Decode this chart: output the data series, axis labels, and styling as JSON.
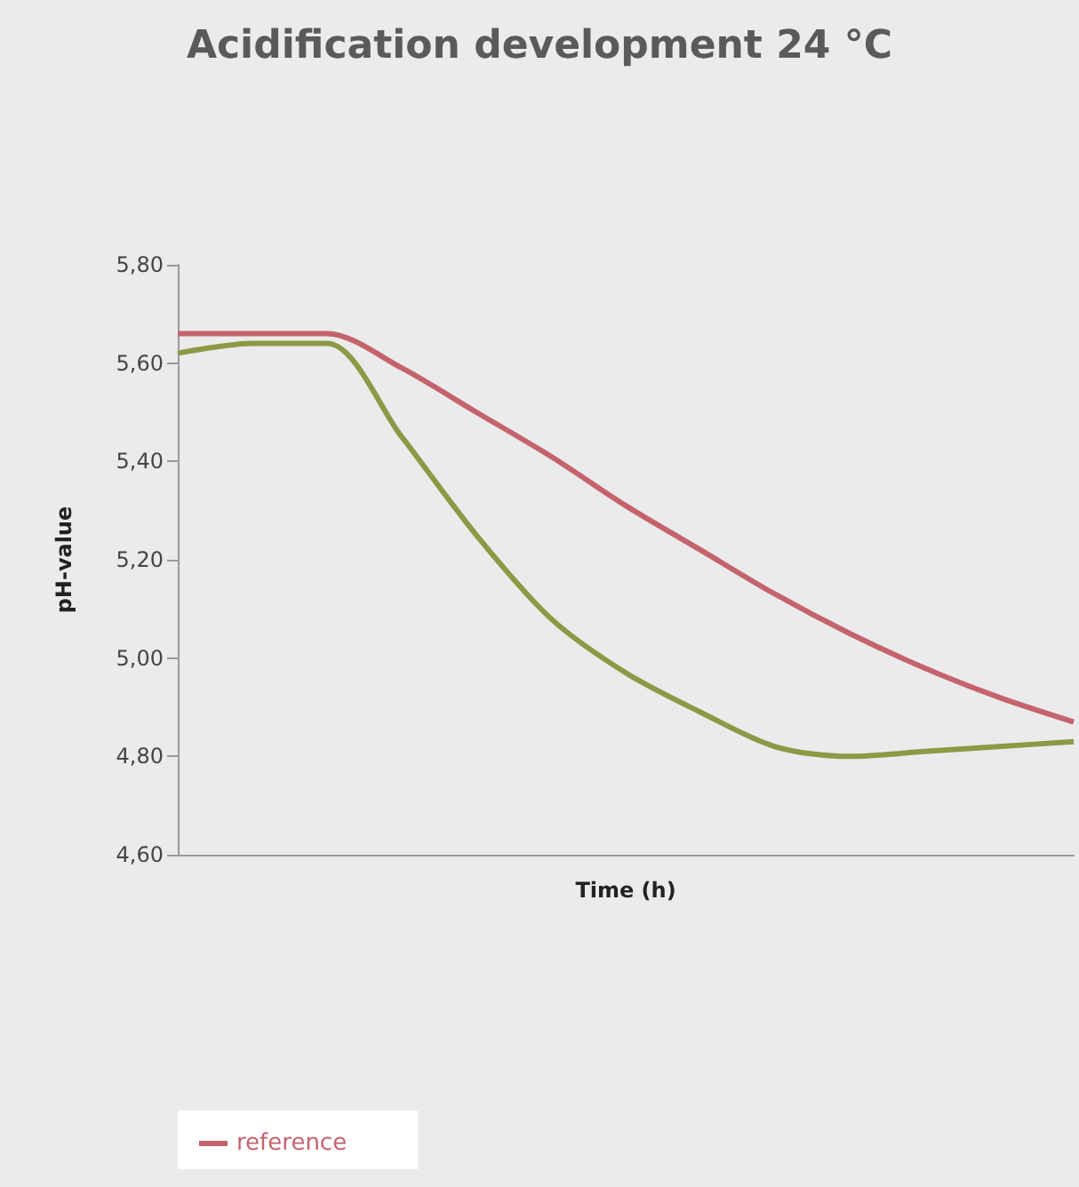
{
  "chart_data": {
    "type": "line",
    "title": "Acidification development 24 °C",
    "xlabel": "Time (h)",
    "ylabel": "pH-value",
    "categories": [
      null,
      null,
      null,
      null,
      null,
      null,
      null,
      null,
      null,
      null,
      null,
      null,
      null
    ],
    "series": [
      {
        "color": "#8a9a45",
        "values": [
          5.62,
          5.64,
          5.64,
          5.45,
          5.25,
          5.08,
          4.97,
          4.89,
          4.82,
          4.8,
          4.81,
          4.82,
          4.83
        ]
      },
      {
        "name": "reference",
        "color": "#c4636e",
        "values": [
          5.66,
          5.66,
          5.66,
          5.59,
          5.5,
          5.41,
          5.31,
          5.22,
          5.13,
          5.05,
          4.98,
          4.92,
          4.87
        ]
      }
    ],
    "ylim": [
      4.6,
      5.8
    ],
    "yticks": [
      {
        "value": 4.6,
        "label": "4,60"
      },
      {
        "value": 4.8,
        "label": "4,80"
      },
      {
        "value": 5.0,
        "label": "5,00"
      },
      {
        "value": 5.2,
        "label": "5,20"
      },
      {
        "value": 5.4,
        "label": "5,40"
      },
      {
        "value": 5.6,
        "label": "5,60"
      },
      {
        "value": 5.8,
        "label": "5,80"
      }
    ],
    "grid": false,
    "legend": "bottom left",
    "marker": "none",
    "line_style": "solid"
  }
}
